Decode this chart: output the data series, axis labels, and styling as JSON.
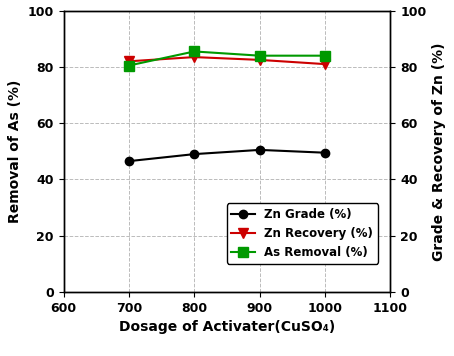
{
  "x": [
    700,
    800,
    900,
    1000
  ],
  "zn_grade": [
    46.5,
    49.0,
    50.5,
    49.5
  ],
  "zn_recovery": [
    82.0,
    83.5,
    82.5,
    81.0
  ],
  "as_removal": [
    80.5,
    85.5,
    84.0,
    84.0
  ],
  "xlabel": "Dosage of Activater(CuSO₄)",
  "ylabel_left": "Removal of As (%)",
  "ylabel_right": "Grade & Recovery of Zn (%)",
  "xlim": [
    600,
    1100
  ],
  "ylim": [
    0,
    100
  ],
  "xticks": [
    600,
    700,
    800,
    900,
    1000,
    1100
  ],
  "yticks": [
    0,
    20,
    40,
    60,
    80,
    100
  ],
  "legend_labels": [
    "Zn Grade (%)",
    "Zn Recovery (%)",
    "As Removal (%)"
  ],
  "line_color_grade": "#000000",
  "line_color_recovery": "#cc0000",
  "line_color_as": "#009900",
  "background_color": "#ffffff",
  "grid_color": "#bbbbbb"
}
